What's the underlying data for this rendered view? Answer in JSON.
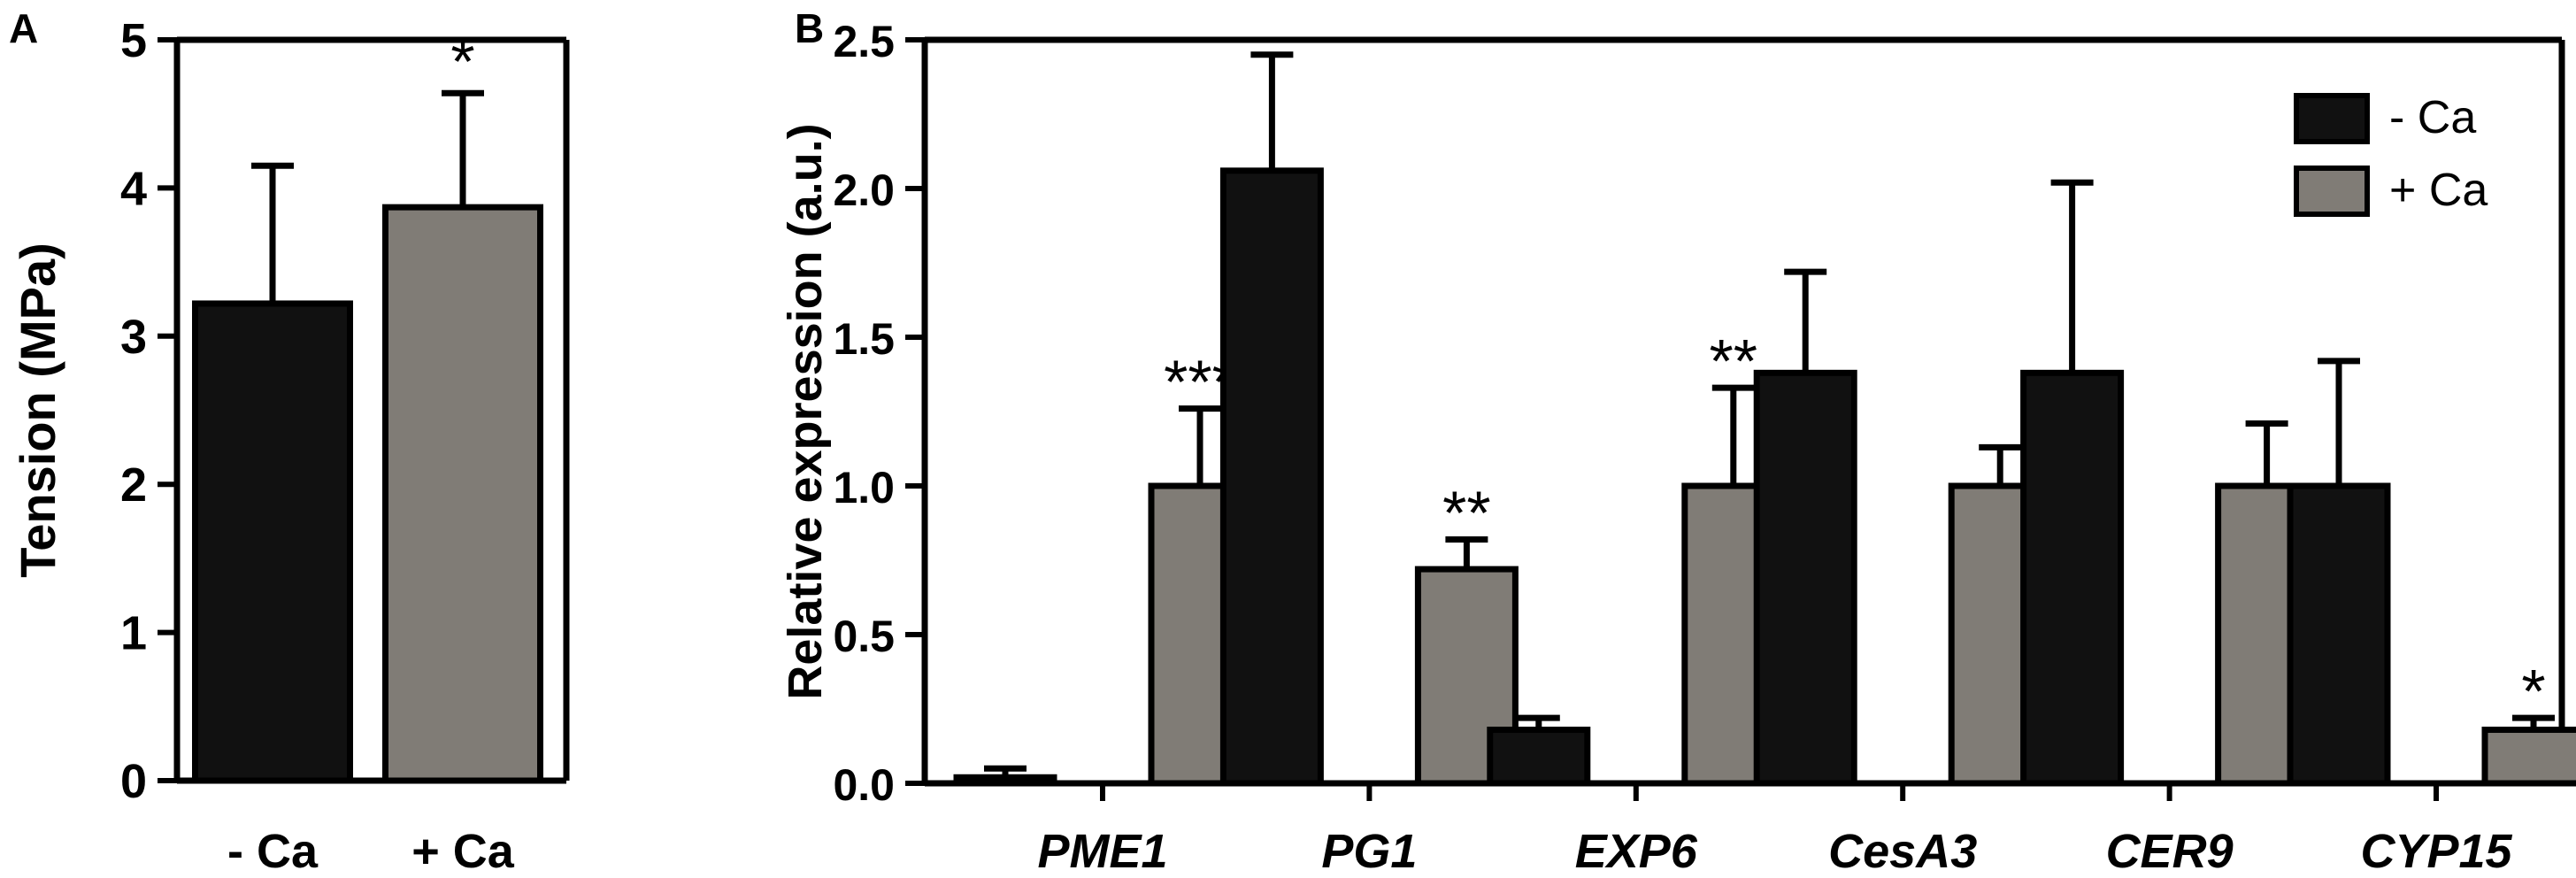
{
  "colors": {
    "minus_ca": "#111111",
    "plus_ca": "#807c76",
    "axis": "#000000"
  },
  "chart_data": [
    {
      "panel": "A",
      "type": "bar",
      "ylabel": "Tension (MPa)",
      "xlabel": "",
      "ylim": [
        0,
        5
      ],
      "yticks": [
        "0",
        "1",
        "2",
        "3",
        "4",
        "5"
      ],
      "ytick_values": [
        0,
        1,
        2,
        3,
        4,
        5
      ],
      "categories": [
        "- Ca",
        "+ Ca"
      ],
      "values": [
        3.22,
        3.87
      ],
      "errors": [
        0.93,
        0.77
      ],
      "annotations": [
        "",
        "*"
      ],
      "grid": false
    },
    {
      "panel": "B",
      "type": "bar",
      "ylabel": "Relative expression (a.u.)",
      "xlabel": "",
      "ylim": [
        0,
        2.5
      ],
      "yticks": [
        "0.0",
        "0.5",
        "1.0",
        "1.5",
        "2.0",
        "2.5"
      ],
      "ytick_values": [
        0,
        0.5,
        1.0,
        1.5,
        2.0,
        2.5
      ],
      "categories": [
        "PME1",
        "PG1",
        "EXP6",
        "CesA3",
        "CER9",
        "CYP15"
      ],
      "series": [
        {
          "name": "- Ca",
          "values": [
            0.02,
            2.06,
            0.18,
            1.38,
            1.38,
            1.0
          ],
          "errors": [
            0.03,
            0.39,
            0.04,
            0.34,
            0.64,
            0.42
          ]
        },
        {
          "name": "+ Ca",
          "values": [
            1.0,
            0.72,
            1.0,
            1.0,
            1.0,
            0.18
          ],
          "errors": [
            0.26,
            0.1,
            0.33,
            0.13,
            0.21,
            0.04
          ]
        }
      ],
      "annotations": [
        "***",
        "**",
        "**",
        "",
        "",
        "*"
      ],
      "legend": "top-right",
      "grid": false
    }
  ]
}
